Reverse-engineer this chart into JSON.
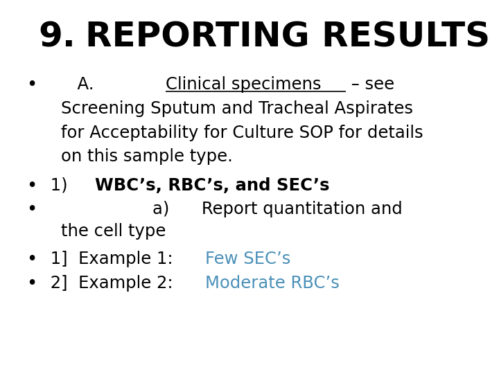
{
  "background_color": "#ffffff",
  "title_number": "9.",
  "title_text": "REPORTING RESULTS",
  "title_fontsize": 36,
  "body_fontsize": 17.5,
  "lines": [
    {
      "bullet": true,
      "continuation": false,
      "segments": [
        {
          "text": "      A.    ",
          "style": "normal",
          "color": "#000000"
        },
        {
          "text": "Clinical specimens",
          "style": "underline",
          "color": "#000000"
        },
        {
          "text": " – see",
          "style": "normal",
          "color": "#000000"
        }
      ]
    },
    {
      "bullet": false,
      "continuation": true,
      "segments": [
        {
          "text": "Screening Sputum and Tracheal Aspirates",
          "style": "normal",
          "color": "#000000"
        }
      ]
    },
    {
      "bullet": false,
      "continuation": true,
      "segments": [
        {
          "text": "for Acceptability for Culture SOP for details",
          "style": "normal",
          "color": "#000000"
        }
      ]
    },
    {
      "bullet": false,
      "continuation": true,
      "segments": [
        {
          "text": "on this sample type.",
          "style": "normal",
          "color": "#000000"
        }
      ]
    },
    {
      "bullet": true,
      "continuation": false,
      "segments": [
        {
          "text": " 1)  ",
          "style": "normal",
          "color": "#000000"
        },
        {
          "text": "WBC’s, RBC’s, and SEC’s",
          "style": "bold",
          "color": "#000000"
        }
      ]
    },
    {
      "bullet": true,
      "continuation": false,
      "segments": [
        {
          "text": "                    a)      Report quantitation and",
          "style": "normal",
          "color": "#000000"
        }
      ]
    },
    {
      "bullet": false,
      "continuation": true,
      "segments": [
        {
          "text": "the cell type",
          "style": "normal",
          "color": "#000000"
        }
      ]
    },
    {
      "bullet": true,
      "continuation": false,
      "segments": [
        {
          "text": " 1]  Example 1: ",
          "style": "normal",
          "color": "#000000"
        },
        {
          "text": "Few SEC’s",
          "style": "normal",
          "color": "#4a90b8"
        }
      ]
    },
    {
      "bullet": true,
      "continuation": false,
      "segments": [
        {
          "text": " 2]  Example 2: ",
          "style": "normal",
          "color": "#000000"
        },
        {
          "text": "Moderate RBC’s",
          "style": "normal",
          "color": "#4a90b8"
        }
      ]
    }
  ]
}
